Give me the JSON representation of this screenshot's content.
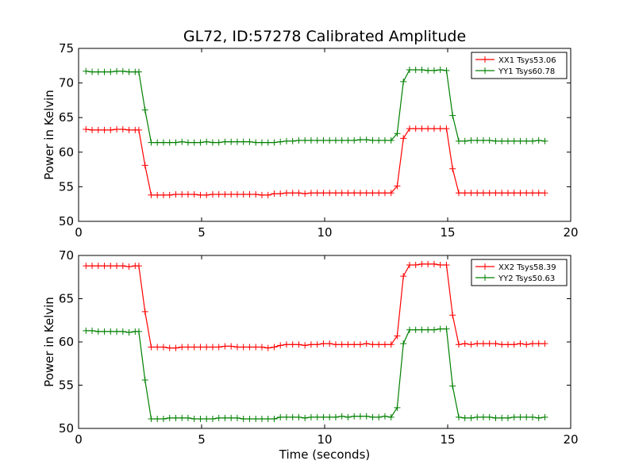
{
  "chart_data": [
    {
      "type": "line",
      "title": "GL72, ID:57278 Calibrated Amplitude",
      "xlabel": "",
      "ylabel": "Power in Kelvin",
      "xlim": [
        0,
        20
      ],
      "ylim": [
        50,
        75
      ],
      "xticks": [
        "0",
        "5",
        "10",
        "15",
        "20"
      ],
      "yticks": [
        "50",
        "55",
        "60",
        "65",
        "70",
        "75"
      ],
      "legend_position": "top-right",
      "x": [
        0.3,
        0.55,
        0.8,
        1.05,
        1.3,
        1.55,
        1.8,
        2.05,
        2.3,
        2.45,
        2.7,
        2.95,
        3.2,
        3.45,
        3.7,
        3.95,
        4.2,
        4.45,
        4.7,
        4.95,
        5.2,
        5.45,
        5.7,
        5.95,
        6.2,
        6.45,
        6.7,
        6.95,
        7.2,
        7.45,
        7.7,
        7.95,
        8.2,
        8.45,
        8.7,
        8.95,
        9.2,
        9.45,
        9.7,
        9.95,
        10.2,
        10.45,
        10.7,
        10.95,
        11.2,
        11.45,
        11.7,
        11.95,
        12.2,
        12.45,
        12.7,
        12.95,
        13.2,
        13.45,
        13.7,
        13.95,
        14.2,
        14.45,
        14.7,
        14.95,
        15.2,
        15.45,
        15.7,
        15.95,
        16.2,
        16.45,
        16.7,
        16.95,
        17.2,
        17.45,
        17.7,
        17.95,
        18.2,
        18.45,
        18.7,
        18.95
      ],
      "series": [
        {
          "name": "XX1 Tsys53.06",
          "color": "#ff0000",
          "values": [
            63.3,
            63.2,
            63.2,
            63.2,
            63.2,
            63.3,
            63.3,
            63.2,
            63.2,
            63.2,
            58.1,
            53.8,
            53.8,
            53.8,
            53.8,
            53.9,
            53.9,
            53.9,
            53.9,
            53.8,
            53.8,
            53.9,
            53.9,
            53.9,
            53.9,
            53.9,
            53.9,
            53.9,
            53.9,
            53.8,
            53.8,
            54.0,
            54.0,
            54.1,
            54.1,
            54.1,
            54.0,
            54.1,
            54.1,
            54.1,
            54.1,
            54.1,
            54.1,
            54.1,
            54.1,
            54.1,
            54.1,
            54.1,
            54.1,
            54.1,
            54.1,
            55.1,
            62.0,
            63.4,
            63.4,
            63.4,
            63.4,
            63.4,
            63.4,
            63.4,
            57.6,
            54.1,
            54.1,
            54.1,
            54.1,
            54.1,
            54.1,
            54.1,
            54.1,
            54.1,
            54.1,
            54.1,
            54.1,
            54.1,
            54.1,
            54.1
          ]
        },
        {
          "name": "YY1 Tsys60.78",
          "color": "#008000",
          "values": [
            71.7,
            71.6,
            71.6,
            71.6,
            71.6,
            71.7,
            71.7,
            71.6,
            71.6,
            71.6,
            66.1,
            61.4,
            61.4,
            61.4,
            61.4,
            61.4,
            61.5,
            61.4,
            61.4,
            61.4,
            61.5,
            61.4,
            61.4,
            61.5,
            61.5,
            61.5,
            61.5,
            61.5,
            61.4,
            61.4,
            61.4,
            61.4,
            61.5,
            61.6,
            61.6,
            61.7,
            61.7,
            61.7,
            61.7,
            61.7,
            61.7,
            61.7,
            61.7,
            61.7,
            61.7,
            61.8,
            61.8,
            61.7,
            61.7,
            61.7,
            61.7,
            62.7,
            70.2,
            71.9,
            71.9,
            71.9,
            71.8,
            71.8,
            71.9,
            71.8,
            65.3,
            61.6,
            61.6,
            61.7,
            61.7,
            61.7,
            61.7,
            61.6,
            61.6,
            61.6,
            61.6,
            61.6,
            61.6,
            61.6,
            61.7,
            61.6
          ]
        }
      ]
    },
    {
      "type": "line",
      "title": "",
      "xlabel": "Time (seconds)",
      "ylabel": "Power in Kelvin",
      "xlim": [
        0,
        20
      ],
      "ylim": [
        50,
        70
      ],
      "xticks": [
        "0",
        "5",
        "10",
        "15",
        "20"
      ],
      "yticks": [
        "50",
        "55",
        "60",
        "65",
        "70"
      ],
      "legend_position": "top-right",
      "x": [
        0.3,
        0.55,
        0.8,
        1.05,
        1.3,
        1.55,
        1.8,
        2.05,
        2.3,
        2.45,
        2.7,
        2.95,
        3.2,
        3.45,
        3.7,
        3.95,
        4.2,
        4.45,
        4.7,
        4.95,
        5.2,
        5.45,
        5.7,
        5.95,
        6.2,
        6.45,
        6.7,
        6.95,
        7.2,
        7.45,
        7.7,
        7.95,
        8.2,
        8.45,
        8.7,
        8.95,
        9.2,
        9.45,
        9.7,
        9.95,
        10.2,
        10.45,
        10.7,
        10.95,
        11.2,
        11.45,
        11.7,
        11.95,
        12.2,
        12.45,
        12.7,
        12.95,
        13.2,
        13.45,
        13.7,
        13.95,
        14.2,
        14.45,
        14.7,
        14.95,
        15.2,
        15.45,
        15.7,
        15.95,
        16.2,
        16.45,
        16.7,
        16.95,
        17.2,
        17.45,
        17.7,
        17.95,
        18.2,
        18.45,
        18.7,
        18.95
      ],
      "series": [
        {
          "name": "XX2 Tsys58.39",
          "color": "#ff0000",
          "values": [
            68.8,
            68.8,
            68.8,
            68.8,
            68.8,
            68.8,
            68.8,
            68.7,
            68.8,
            68.8,
            63.5,
            59.4,
            59.4,
            59.4,
            59.3,
            59.3,
            59.4,
            59.4,
            59.4,
            59.4,
            59.4,
            59.4,
            59.4,
            59.5,
            59.5,
            59.4,
            59.4,
            59.4,
            59.4,
            59.4,
            59.3,
            59.4,
            59.6,
            59.7,
            59.7,
            59.7,
            59.6,
            59.7,
            59.7,
            59.8,
            59.8,
            59.7,
            59.7,
            59.7,
            59.7,
            59.7,
            59.8,
            59.7,
            59.7,
            59.7,
            59.7,
            60.7,
            67.6,
            68.9,
            68.9,
            69.0,
            69.0,
            69.0,
            68.9,
            68.9,
            63.1,
            59.7,
            59.8,
            59.7,
            59.8,
            59.8,
            59.8,
            59.8,
            59.7,
            59.7,
            59.7,
            59.8,
            59.7,
            59.8,
            59.8,
            59.8
          ]
        },
        {
          "name": "YY2 Tsys50.63",
          "color": "#008000",
          "values": [
            61.3,
            61.3,
            61.2,
            61.2,
            61.2,
            61.2,
            61.2,
            61.1,
            61.2,
            61.2,
            55.6,
            51.1,
            51.1,
            51.1,
            51.2,
            51.2,
            51.2,
            51.2,
            51.1,
            51.1,
            51.1,
            51.1,
            51.2,
            51.2,
            51.2,
            51.2,
            51.1,
            51.1,
            51.1,
            51.1,
            51.1,
            51.1,
            51.3,
            51.3,
            51.3,
            51.3,
            51.2,
            51.3,
            51.3,
            51.3,
            51.3,
            51.3,
            51.4,
            51.3,
            51.4,
            51.4,
            51.4,
            51.3,
            51.3,
            51.4,
            51.3,
            52.4,
            59.8,
            61.4,
            61.4,
            61.4,
            61.4,
            61.4,
            61.5,
            61.5,
            54.9,
            51.3,
            51.2,
            51.2,
            51.3,
            51.3,
            51.3,
            51.2,
            51.2,
            51.2,
            51.3,
            51.3,
            51.3,
            51.3,
            51.2,
            51.3
          ]
        }
      ]
    }
  ]
}
